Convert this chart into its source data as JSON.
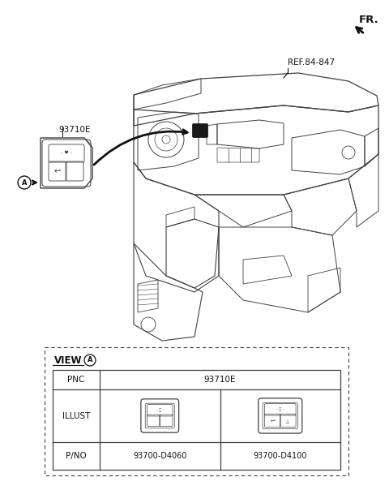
{
  "bg_color": "#ffffff",
  "line_color": "#404040",
  "dark_color": "#111111",
  "fr_label": "FR.",
  "ref_label": "REF.84-847",
  "view_label": "VIEW",
  "pnc_label": "PNC",
  "pnc_value": "93710E",
  "illust_label": "ILLUST",
  "pno_label": "P/NO",
  "part1_pno": "93700-D4060",
  "part2_pno": "93700-D4100",
  "callout_label": "93710E",
  "circle_a_label": "A",
  "figsize": [
    4.8,
    6.04
  ],
  "dpi": 100
}
